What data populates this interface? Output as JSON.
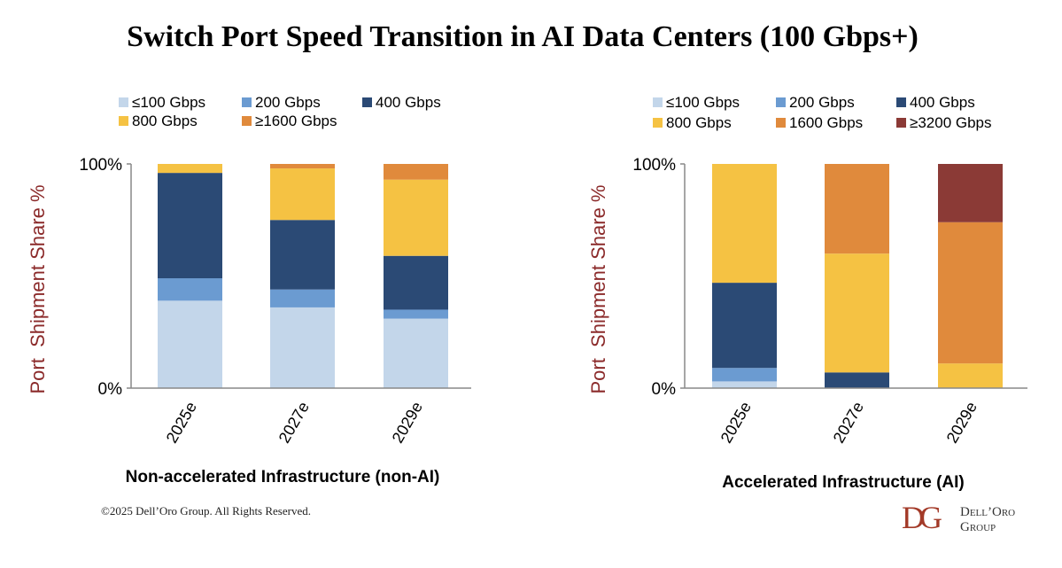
{
  "title": "Switch Port Speed Transition in AI Data Centers (100 Gbps+)",
  "colors": {
    "le100": "#c3d6ea",
    "g200": "#6b9bd1",
    "g400": "#2b4a75",
    "g800": "#f5c243",
    "g1600": "#e08a3c",
    "g3200": "#8b3a36",
    "ylabel": "#8b2a2a",
    "logo": "#a33a28"
  },
  "chart_data": [
    {
      "type": "bar",
      "stacked": true,
      "title": "Non-accelerated Infrastructure (non-AI)",
      "xlabel": "Non-accelerated Infrastructure (non-AI)",
      "ylabel": "Port  Shipment Share %",
      "ylim": [
        0,
        100
      ],
      "yticks": [
        "0%",
        "100%"
      ],
      "grid": false,
      "legend_position": "top-left",
      "categories": [
        "2025e",
        "2027e",
        "2029e"
      ],
      "series": [
        {
          "name": "≤100 Gbps",
          "color_key": "le100",
          "values": [
            39,
            36,
            31
          ]
        },
        {
          "name": "200 Gbps",
          "color_key": "g200",
          "values": [
            10,
            8,
            4
          ]
        },
        {
          "name": "400 Gbps",
          "color_key": "g400",
          "values": [
            47,
            31,
            24
          ]
        },
        {
          "name": "800 Gbps",
          "color_key": "g800",
          "values": [
            4,
            23,
            34
          ]
        },
        {
          "name": "≥1600 Gbps",
          "color_key": "g1600",
          "values": [
            0,
            2,
            7
          ]
        }
      ]
    },
    {
      "type": "bar",
      "stacked": true,
      "title": "Accelerated Infrastructure (AI)",
      "xlabel": "Accelerated Infrastructure (AI)",
      "ylabel": "Port  Shipment Share %",
      "ylim": [
        0,
        100
      ],
      "yticks": [
        "0%",
        "100%"
      ],
      "grid": false,
      "legend_position": "top-left",
      "categories": [
        "2025e",
        "2027e",
        "2029e"
      ],
      "series": [
        {
          "name": "≤100 Gbps",
          "color_key": "le100",
          "values": [
            3,
            0,
            0
          ]
        },
        {
          "name": "200 Gbps",
          "color_key": "g200",
          "values": [
            6,
            0,
            0
          ]
        },
        {
          "name": "400 Gbps",
          "color_key": "g400",
          "values": [
            38,
            7,
            0
          ]
        },
        {
          "name": "800 Gbps",
          "color_key": "g800",
          "values": [
            53,
            53,
            11
          ]
        },
        {
          "name": "1600 Gbps",
          "color_key": "g1600",
          "values": [
            0,
            40,
            63
          ]
        },
        {
          "name": "≥3200 Gbps",
          "color_key": "g3200",
          "values": [
            0,
            0,
            26
          ]
        }
      ]
    }
  ],
  "footer": {
    "copyright": "©2025 Dell’Oro Group. All Rights Reserved.",
    "logo_mark": "DG",
    "logo_line1": "Dell’Oro",
    "logo_line2": "Group"
  }
}
